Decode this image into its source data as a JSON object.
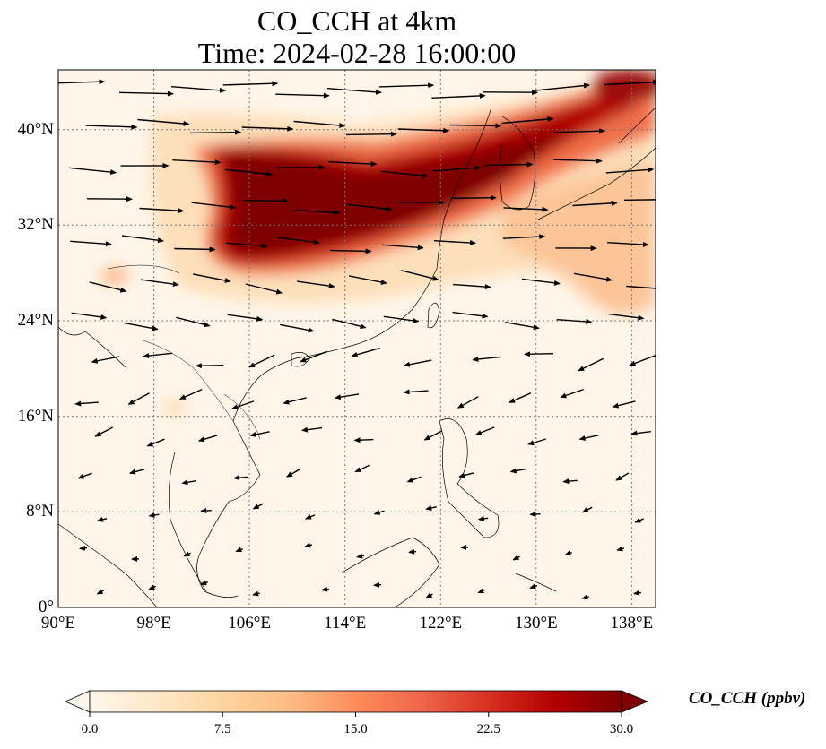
{
  "title": {
    "line1": "CO_CCH at 4km",
    "line2": "Time: 2024-02-28 16:00:00"
  },
  "map": {
    "variable": "CO_CCH",
    "height": "4km",
    "time": "2024-02-28 16:00:00",
    "lon_range": [
      90,
      140
    ],
    "lat_range": [
      0,
      45
    ],
    "x_ticks": [
      "90°E",
      "98°E",
      "106°E",
      "114°E",
      "122°E",
      "130°E",
      "138°E"
    ],
    "y_ticks": [
      "0°",
      "8°N",
      "16°N",
      "24°N",
      "32°N",
      "40°N"
    ],
    "gridlines": true,
    "colormap": "OrRd",
    "overlay": "wind vectors"
  },
  "colorbar": {
    "label": "CO_CCH (ppbv)",
    "ticks": [
      "0.0",
      "7.5",
      "15.0",
      "22.5",
      "30.0"
    ],
    "min": 0,
    "max": 30,
    "extend": "both",
    "colors": [
      "#fff7ec",
      "#fee8c8",
      "#fdd49e",
      "#fdbb84",
      "#fc8d59",
      "#ef6548",
      "#d7301f",
      "#b30000",
      "#7f0000"
    ]
  }
}
